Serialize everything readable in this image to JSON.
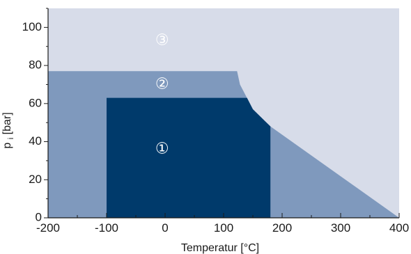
{
  "chart_data": {
    "type": "area",
    "xlabel": "Temperatur [°C]",
    "ylabel": "pi [bar]",
    "ylabel_main": "p",
    "ylabel_sub": "i",
    "ylabel_unit": "[bar]",
    "xlim": [
      -200,
      400
    ],
    "ylim": [
      0,
      110
    ],
    "xticks": [
      -200,
      -100,
      0,
      100,
      200,
      300,
      400
    ],
    "yticks": [
      0,
      20,
      40,
      60,
      80,
      100
    ],
    "xtick_labels": [
      "-200",
      "-100",
      "0",
      "100",
      "200",
      "300",
      "400"
    ],
    "ytick_labels": [
      "0",
      "20",
      "40",
      "60",
      "80",
      "100"
    ],
    "grid": false,
    "series": [
      {
        "label": "③",
        "color": "#d7dce9",
        "label_color": "#ffffff",
        "label_at": [
          -5,
          93
        ],
        "points": [
          [
            -200,
            0
          ],
          [
            -200,
            110
          ],
          [
            400,
            110
          ],
          [
            400,
            0
          ]
        ]
      },
      {
        "label": "②",
        "color": "#7f99bd",
        "label_color": "#ffffff",
        "label_at": [
          -5,
          70
        ],
        "points": [
          [
            -200,
            0
          ],
          [
            -200,
            77
          ],
          [
            123,
            77
          ],
          [
            128,
            70
          ],
          [
            150,
            57
          ],
          [
            180,
            48
          ],
          [
            400,
            0
          ]
        ]
      },
      {
        "label": "①",
        "color": "#003a6b",
        "label_color": "#ffffff",
        "label_at": [
          -5,
          36
        ],
        "points": [
          [
            -100,
            0
          ],
          [
            -100,
            63
          ],
          [
            140,
            63
          ],
          [
            150,
            57
          ],
          [
            180,
            48
          ],
          [
            180,
            0
          ]
        ]
      }
    ]
  }
}
